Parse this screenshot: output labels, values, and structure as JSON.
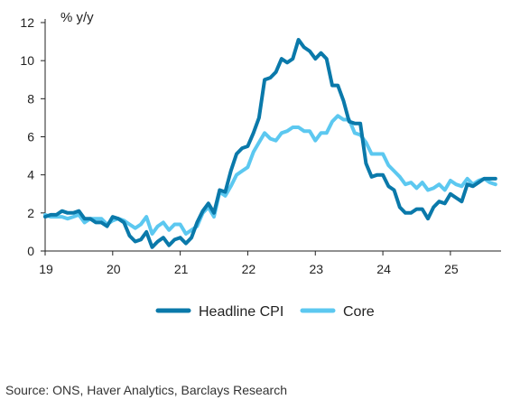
{
  "chart_data": {
    "type": "line",
    "ylabel": "% y/y",
    "ylim": [
      0,
      12
    ],
    "yticks": [
      0,
      2,
      4,
      6,
      8,
      10,
      12
    ],
    "xlim": [
      2019,
      2025.75
    ],
    "xticks": [
      {
        "value": 2019,
        "label": "19"
      },
      {
        "value": 2020,
        "label": "20"
      },
      {
        "value": 2021,
        "label": "21"
      },
      {
        "value": 2022,
        "label": "22"
      },
      {
        "value": 2023,
        "label": "23"
      },
      {
        "value": 2024,
        "label": "24"
      },
      {
        "value": 2025,
        "label": "25"
      }
    ],
    "grid": false,
    "legend": "bottom",
    "series": [
      {
        "name": "Headline CPI",
        "color": "#0a79aa",
        "x_start": 2019,
        "step": "monthly",
        "values": [
          1.8,
          1.9,
          1.9,
          2.1,
          2.0,
          2.0,
          2.1,
          1.7,
          1.7,
          1.5,
          1.5,
          1.3,
          1.8,
          1.7,
          1.5,
          0.8,
          0.5,
          0.6,
          1.0,
          0.2,
          0.5,
          0.7,
          0.3,
          0.6,
          0.7,
          0.4,
          0.7,
          1.5,
          2.1,
          2.5,
          2.0,
          3.2,
          3.1,
          4.2,
          5.1,
          5.4,
          5.5,
          6.2,
          7.0,
          9.0,
          9.1,
          9.4,
          10.1,
          9.9,
          10.1,
          11.1,
          10.7,
          10.5,
          10.1,
          10.4,
          10.1,
          8.7,
          8.7,
          7.9,
          6.8,
          6.7,
          6.7,
          4.6,
          3.9,
          4.0,
          4.0,
          3.4,
          3.2,
          2.3,
          2.0,
          2.0,
          2.2,
          2.2,
          1.7,
          2.3,
          2.6,
          2.5,
          3.0,
          2.8,
          2.6,
          3.5,
          3.4,
          3.6,
          3.8,
          3.8,
          3.8
        ]
      },
      {
        "name": "Core",
        "color": "#5cc8f0",
        "x_start": 2019,
        "step": "monthly",
        "values": [
          1.9,
          1.8,
          1.8,
          1.8,
          1.7,
          1.8,
          1.9,
          1.5,
          1.7,
          1.7,
          1.7,
          1.4,
          1.6,
          1.7,
          1.6,
          1.4,
          1.2,
          1.4,
          1.8,
          0.9,
          1.3,
          1.5,
          1.1,
          1.4,
          1.4,
          0.9,
          1.1,
          1.3,
          2.0,
          2.3,
          1.8,
          3.1,
          2.9,
          3.4,
          4.0,
          4.2,
          4.4,
          5.2,
          5.7,
          6.2,
          5.9,
          5.8,
          6.2,
          6.3,
          6.5,
          6.5,
          6.3,
          6.3,
          5.8,
          6.2,
          6.2,
          6.8,
          7.1,
          6.9,
          6.9,
          6.2,
          6.1,
          5.7,
          5.1,
          5.1,
          5.1,
          4.5,
          4.2,
          3.9,
          3.5,
          3.6,
          3.3,
          3.6,
          3.2,
          3.3,
          3.5,
          3.2,
          3.7,
          3.5,
          3.4,
          3.8,
          3.5,
          3.7,
          3.8,
          3.6,
          3.5
        ]
      }
    ]
  },
  "legend": {
    "headline_label": "Headline CPI",
    "core_label": "Core"
  },
  "source": "Source: ONS, Haver Analytics, Barclays Research"
}
